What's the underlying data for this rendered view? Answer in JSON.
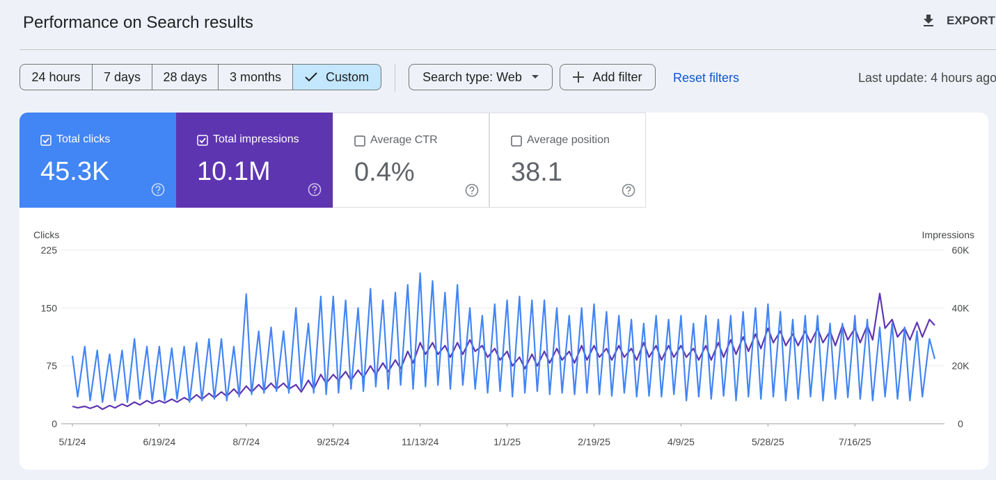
{
  "header": {
    "title": "Performance on Search results",
    "export": "EXPORT"
  },
  "filters": {
    "date_ranges": [
      "24 hours",
      "7 days",
      "28 days",
      "3 months",
      "Custom"
    ],
    "selected": 4,
    "search_type": "Search type: Web",
    "add_filter": "Add filter",
    "reset": "Reset filters",
    "last_update": "Last update: 4 hours ago"
  },
  "cards": [
    {
      "label": "Total clicks",
      "value": "45.3K",
      "checked": true,
      "color": "#4285f4"
    },
    {
      "label": "Total impressions",
      "value": "10.1M",
      "checked": true,
      "color": "#5e35b1"
    },
    {
      "label": "Average CTR",
      "value": "0.4%",
      "checked": false
    },
    {
      "label": "Average position",
      "value": "38.1",
      "checked": false
    }
  ],
  "chart_data": {
    "type": "line",
    "y_label": "Clicks",
    "y2_label": "Impressions",
    "x": [
      0,
      3,
      7,
      10,
      14,
      17,
      21,
      24,
      28,
      31,
      35,
      38,
      42,
      45,
      49,
      52,
      56,
      59,
      63,
      66,
      70,
      73,
      77,
      80,
      84,
      87,
      91,
      94,
      98,
      101,
      105,
      108,
      112,
      115,
      119,
      122,
      126,
      129,
      133,
      136,
      140,
      143,
      147,
      150,
      154,
      157,
      161,
      164,
      168,
      171,
      175,
      178,
      182,
      185,
      189,
      192,
      196,
      199,
      203,
      206,
      210,
      213,
      217,
      220,
      224,
      227,
      231,
      234,
      238,
      241,
      245,
      248,
      252,
      255,
      259,
      262,
      266,
      269,
      273,
      276,
      280,
      283,
      287,
      290,
      294,
      297,
      301,
      304,
      308,
      311,
      315,
      318,
      322,
      325,
      329,
      332,
      336,
      339,
      343,
      346,
      350,
      353,
      357,
      360,
      364,
      367,
      371,
      374,
      378,
      381,
      385,
      388,
      392,
      395,
      399,
      402,
      406,
      409,
      413,
      416,
      420,
      423,
      427,
      430,
      434,
      437,
      441,
      444,
      448,
      451,
      455,
      458,
      462,
      465,
      469,
      472,
      476,
      479,
      483,
      486
    ],
    "xlim": [
      0,
      486
    ],
    "xticks": [
      {
        "value": 0,
        "label": "5/1/24"
      },
      {
        "value": 49,
        "label": "6/19/24"
      },
      {
        "value": 98,
        "label": "8/7/24"
      },
      {
        "value": 147,
        "label": "9/25/24"
      },
      {
        "value": 196,
        "label": "11/13/24"
      },
      {
        "value": 245,
        "label": "1/1/25"
      },
      {
        "value": 294,
        "label": "2/19/25"
      },
      {
        "value": 343,
        "label": "4/9/25"
      },
      {
        "value": 392,
        "label": "5/28/25"
      },
      {
        "value": 441,
        "label": "7/16/25"
      }
    ],
    "ylim": [
      0,
      225
    ],
    "yticks": [
      0,
      75,
      150,
      225
    ],
    "y2lim": [
      0,
      60000
    ],
    "y2ticks": [
      0,
      {
        "value": 20000,
        "label": "20K"
      },
      {
        "value": 40000,
        "label": "40K"
      },
      {
        "value": 60000,
        "label": "60K"
      }
    ],
    "grid": true,
    "series": [
      {
        "name": "Clicks",
        "color": "#4285f4",
        "values": [
          88,
          35,
          100,
          30,
          95,
          28,
          90,
          30,
          95,
          28,
          110,
          32,
          100,
          30,
          100,
          30,
          98,
          32,
          100,
          28,
          105,
          30,
          110,
          32,
          110,
          30,
          100,
          35,
          168,
          38,
          120,
          40,
          125,
          42,
          120,
          40,
          150,
          45,
          130,
          40,
          165,
          38,
          165,
          40,
          160,
          45,
          150,
          42,
          175,
          48,
          160,
          45,
          170,
          50,
          180,
          45,
          195,
          48,
          185,
          50,
          170,
          45,
          180,
          50,
          150,
          45,
          140,
          40,
          155,
          42,
          160,
          35,
          165,
          40,
          160,
          42,
          160,
          38,
          150,
          40,
          140,
          38,
          150,
          40,
          155,
          38,
          145,
          36,
          140,
          40,
          135,
          35,
          130,
          36,
          140,
          35,
          135,
          38,
          140,
          30,
          130,
          35,
          140,
          32,
          135,
          36,
          140,
          30,
          145,
          35,
          150,
          32,
          155,
          35,
          145,
          30,
          135,
          32,
          140,
          35,
          140,
          30,
          130,
          32,
          130,
          34,
          140,
          32,
          135,
          30,
          125,
          35,
          130,
          32,
          125,
          30,
          120,
          35,
          110,
          84
        ]
      },
      {
        "name": "Impressions",
        "color": "#5e35b1",
        "axis": "y2",
        "values": [
          6000,
          5500,
          6000,
          5300,
          6200,
          5000,
          6300,
          5500,
          6800,
          6000,
          7500,
          6500,
          8000,
          7000,
          8000,
          7200,
          8500,
          7500,
          9000,
          8000,
          10000,
          8500,
          10500,
          9000,
          11000,
          9500,
          12000,
          10000,
          13000,
          11000,
          13500,
          11500,
          14000,
          12000,
          14000,
          12000,
          13500,
          11000,
          15000,
          12000,
          17000,
          14000,
          17000,
          15000,
          18000,
          15000,
          18500,
          16000,
          20000,
          17000,
          21000,
          18000,
          22000,
          19000,
          25000,
          21000,
          28000,
          24000,
          28000,
          24000,
          27000,
          23000,
          28000,
          24000,
          29000,
          25000,
          27000,
          23000,
          26000,
          22000,
          25000,
          20000,
          23000,
          19000,
          24000,
          20000,
          25000,
          21000,
          26000,
          22000,
          25000,
          21000,
          27000,
          22000,
          27000,
          23000,
          26000,
          22000,
          27000,
          23000,
          26000,
          22000,
          28000,
          23000,
          27000,
          22000,
          27000,
          23000,
          27000,
          23000,
          26000,
          22000,
          27000,
          22000,
          28000,
          23000,
          29000,
          24000,
          30000,
          25000,
          31000,
          26000,
          33000,
          28000,
          32000,
          27000,
          31000,
          27000,
          32000,
          28000,
          33000,
          28000,
          32000,
          27000,
          34000,
          29000,
          33000,
          28000,
          34000,
          29000,
          45000,
          33000,
          36000,
          30000,
          33000,
          29000,
          35000,
          30000,
          36000,
          34000
        ]
      }
    ]
  }
}
